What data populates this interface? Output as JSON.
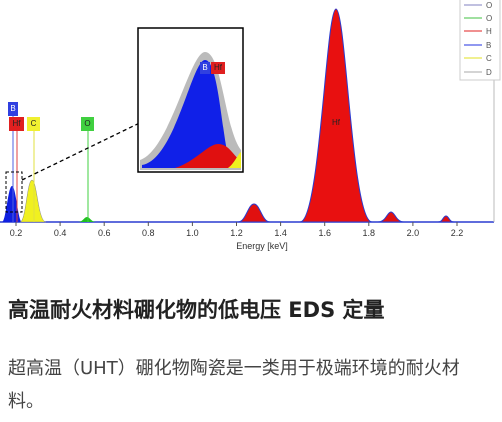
{
  "figure": {
    "legend": [
      "O",
      "O",
      "H",
      "B",
      "C",
      "D"
    ],
    "peak_labels": [
      "B",
      "Hf",
      "C",
      "O",
      "Hf"
    ],
    "inset_labels": [
      "B",
      "Hf"
    ],
    "x_ticks": [
      "0.2",
      "0.4",
      "0.6",
      "0.8",
      "1.0",
      "1.2",
      "1.4",
      "1.6",
      "1.8",
      "2.0",
      "2.2"
    ],
    "x_label": "Energy [keV]"
  },
  "article": {
    "title": "高温耐火材料硼化物的低电压 EDS 定量",
    "body": "超高温（UHT）硼化物陶瓷是一类用于极端环境的耐火材料。"
  }
}
